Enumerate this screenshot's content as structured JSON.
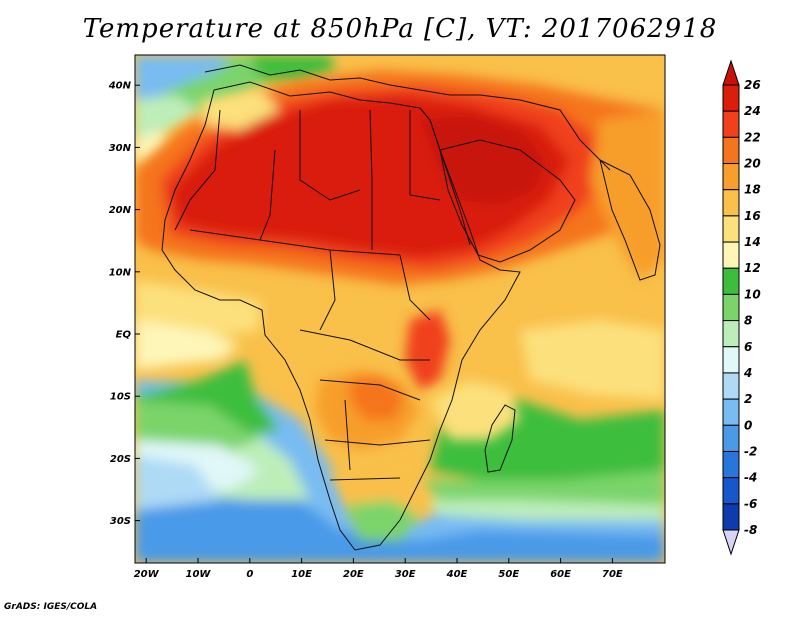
{
  "title": "Temperature at 850hPa [C], VT: 2017062918",
  "footer": "GrADS: IGES/COLA",
  "map": {
    "lat_labels": [
      {
        "lat": 40,
        "label": "40N"
      },
      {
        "lat": 30,
        "label": "30N"
      },
      {
        "lat": 20,
        "label": "20N"
      },
      {
        "lat": 10,
        "label": "10N"
      },
      {
        "lat": 0,
        "label": "EQ"
      },
      {
        "lat": -10,
        "label": "10S"
      },
      {
        "lat": -20,
        "label": "20S"
      },
      {
        "lat": -30,
        "label": "30S"
      }
    ],
    "lon_labels": [
      {
        "lon": -20,
        "label": "20W"
      },
      {
        "lon": -10,
        "label": "10W"
      },
      {
        "lon": 0,
        "label": "0"
      },
      {
        "lon": 10,
        "label": "10E"
      },
      {
        "lon": 20,
        "label": "20E"
      },
      {
        "lon": 30,
        "label": "30E"
      },
      {
        "lon": 40,
        "label": "40E"
      },
      {
        "lon": 50,
        "label": "50E"
      },
      {
        "lon": 60,
        "label": "60E"
      },
      {
        "lon": 70,
        "label": "70E"
      }
    ]
  },
  "colorbar": {
    "levels": [
      {
        "value": "26",
        "color": "#d91e0a"
      },
      {
        "value": "24",
        "color": "#f0401c"
      },
      {
        "value": "22",
        "color": "#f5741e"
      },
      {
        "value": "20",
        "color": "#f79e2c"
      },
      {
        "value": "18",
        "color": "#f9c04a"
      },
      {
        "value": "16",
        "color": "#fce07c"
      },
      {
        "value": "14",
        "color": "#fdf6b8"
      },
      {
        "value": "12",
        "color": "#3cbe3c"
      },
      {
        "value": "10",
        "color": "#7ad46a"
      },
      {
        "value": "8",
        "color": "#bdeeba"
      },
      {
        "value": "6",
        "color": "#e0f8f8"
      },
      {
        "value": "4",
        "color": "#aedaf6"
      },
      {
        "value": "2",
        "color": "#78bcf2"
      },
      {
        "value": "0",
        "color": "#4a9ae8"
      },
      {
        "value": "-2",
        "color": "#2876dc"
      },
      {
        "value": "-4",
        "color": "#1658cc"
      },
      {
        "value": "-6",
        "color": "#0c3cae"
      },
      {
        "value": "-8",
        "color": "#081e80"
      }
    ],
    "under_color": "#d8d4f4",
    "over_color": "#c81208"
  }
}
